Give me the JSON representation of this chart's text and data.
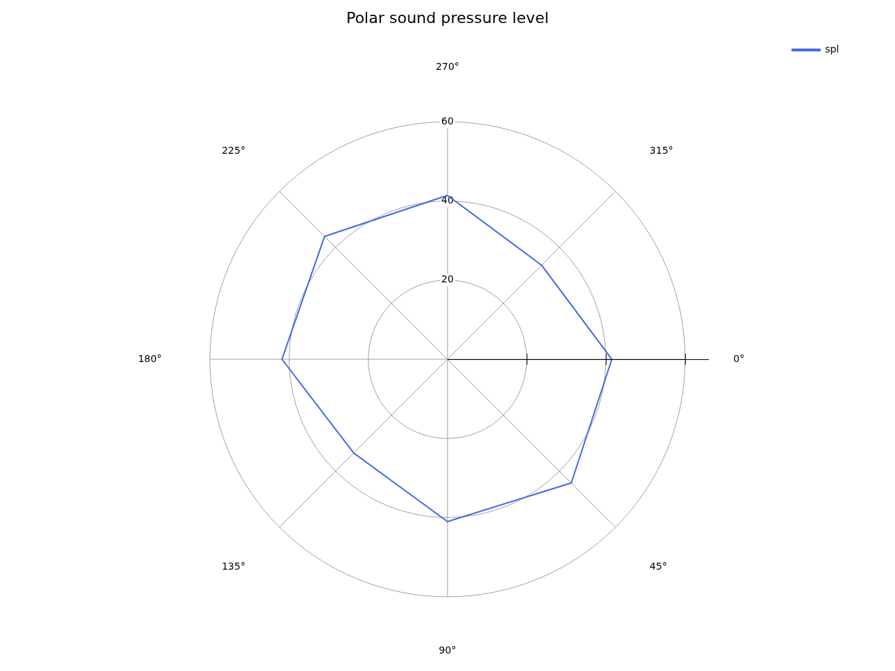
{
  "chart_data": {
    "type": "radar",
    "title": "Polar sound pressure level",
    "categories": [
      "270°",
      "315°",
      "0°",
      "45°",
      "90°",
      "135°",
      "180°",
      "225°"
    ],
    "series": [
      {
        "name": "spl",
        "color": "#4169e1",
        "values": [
          41.4,
          33.6,
          41.5,
          44.2,
          41.0,
          33.5,
          41.8,
          43.9
        ]
      }
    ],
    "ylim": [
      0,
      60
    ],
    "yticks": [
      20,
      40,
      60
    ],
    "grid": true,
    "legend": "top right",
    "marker": "none",
    "line_style": "solid"
  }
}
